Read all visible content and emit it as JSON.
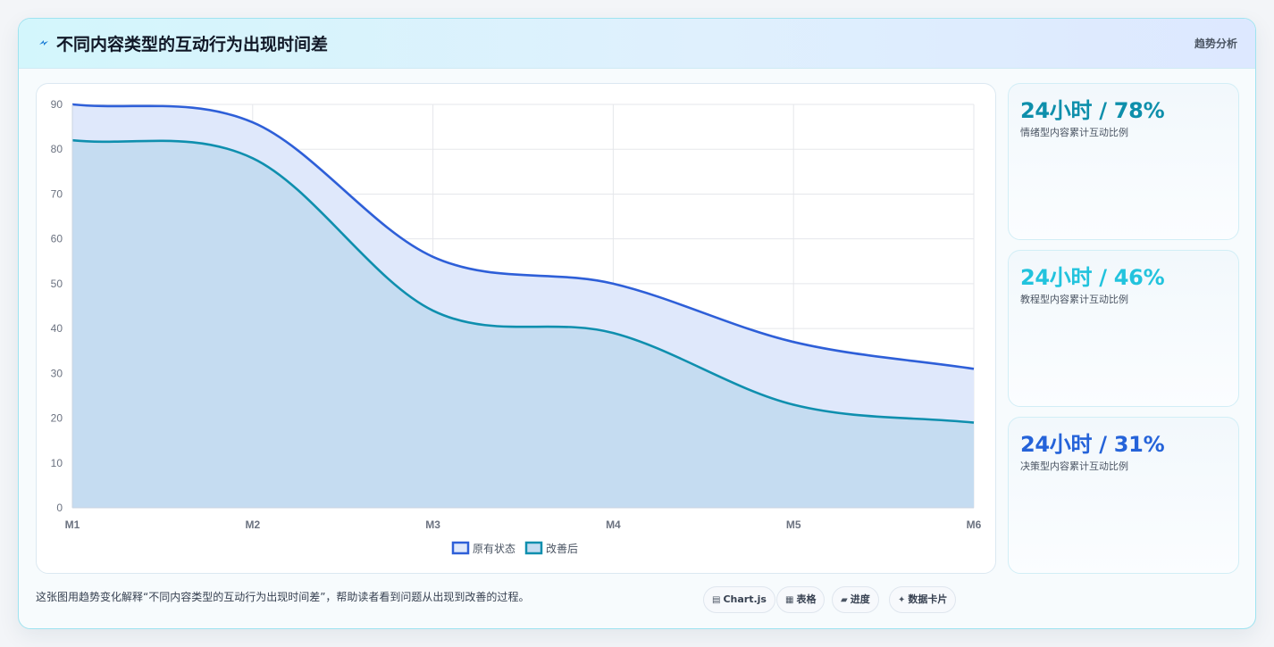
{
  "header": {
    "title": "不同内容类型的互动行为出现时间差",
    "tag": "趋势分析",
    "icon": "bolt-icon"
  },
  "chart_data": {
    "type": "area",
    "categories": [
      "M1",
      "M2",
      "M3",
      "M4",
      "M5",
      "M6"
    ],
    "series": [
      {
        "name": "原有状态",
        "values": [
          90,
          86,
          56,
          50,
          37,
          31
        ],
        "color": "#2e5fd8",
        "fill": "#dfe8fb"
      },
      {
        "name": "改善后",
        "values": [
          82,
          78,
          44,
          39,
          23,
          19
        ],
        "color": "#0f8fae",
        "fill": "#c5dcf1"
      }
    ],
    "ylim": [
      0,
      90
    ],
    "yticks": [
      0,
      10,
      20,
      30,
      40,
      50,
      60,
      70,
      80,
      90
    ],
    "grid": true,
    "legend": "bottom"
  },
  "kpis": [
    {
      "value": "24小时 / 78%",
      "label": "情绪型内容累计互动比例",
      "color": "#0e8fab"
    },
    {
      "value": "24小时 / 46%",
      "label": "教程型内容累计互动比例",
      "color": "#22c3dd"
    },
    {
      "value": "24小时 / 31%",
      "label": "决策型内容累计互动比例",
      "color": "#2563d9"
    }
  ],
  "footer": {
    "text": "这张图用趋势变化解释“不同内容类型的互动行为出现时间差”，帮助读者看到问题从出现到改善的过程。",
    "chips": [
      {
        "icon": "chart-icon",
        "label": "Chart.js"
      },
      {
        "icon": "table-icon",
        "label": "表格"
      },
      {
        "icon": "progress-icon",
        "label": "进度"
      },
      {
        "icon": "sparkle-icon",
        "label": "数据卡片"
      }
    ]
  }
}
